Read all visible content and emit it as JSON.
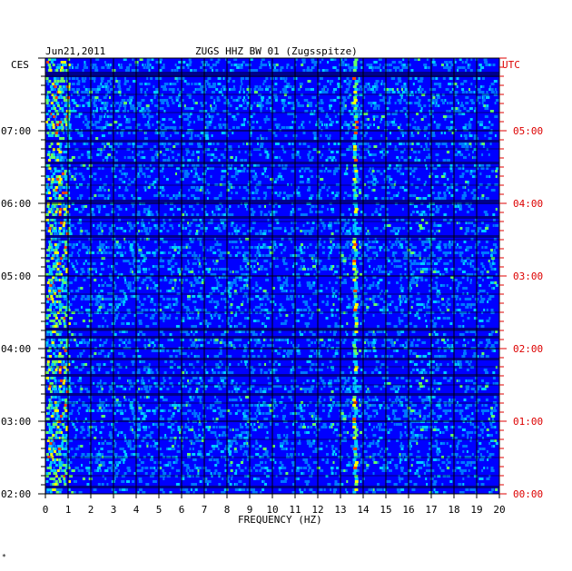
{
  "header": {
    "date": "Jun21,2011",
    "station": "ZUGS HHZ BW 01 (Zugsspitze)",
    "left_tz": "CES",
    "right_tz": "UTC"
  },
  "chart_data": {
    "type": "heatmap",
    "title": "ZUGS HHZ BW 01 (Zugsspitze)",
    "date": "Jun21,2011",
    "xlabel": "FREQUENCY (HZ)",
    "xlim": [
      0,
      20
    ],
    "x_ticks": [
      "0",
      "1",
      "2",
      "3",
      "4",
      "5",
      "6",
      "7",
      "8",
      "9",
      "10",
      "11",
      "12",
      "13",
      "14",
      "15",
      "16",
      "17",
      "18",
      "19",
      "20"
    ],
    "y_left_label": "CES",
    "y_left_ticks": [
      "02:00",
      "03:00",
      "04:00",
      "05:00",
      "06:00",
      "07:00"
    ],
    "y_right_label": "UTC",
    "y_right_ticks": [
      "00:00",
      "01:00",
      "02:00",
      "03:00",
      "04:00",
      "05:00"
    ],
    "time_hours_shown": 6,
    "dominant_band_hz": 13.6,
    "low_frequency_energy_hz": [
      0,
      1
    ],
    "colormap": [
      "#00008b",
      "#0000ff",
      "#0077ff",
      "#00ccff",
      "#66ff66",
      "#ffff00",
      "#ff4400"
    ],
    "grid": true
  },
  "footer": {
    "mark": "*"
  },
  "colors": {
    "right_axis": "#dd0000",
    "left_axis": "#000000",
    "background": "#0000dd"
  }
}
